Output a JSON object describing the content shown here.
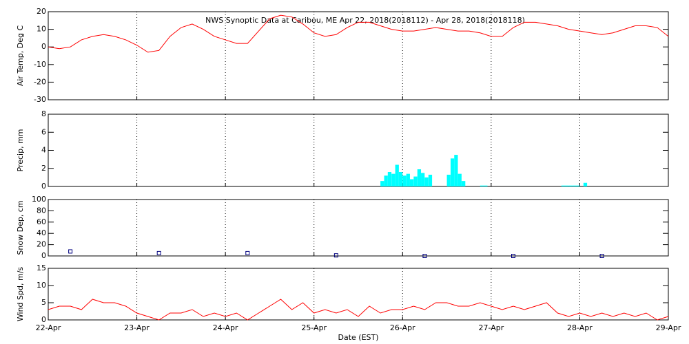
{
  "chart_data": [
    {
      "type": "line",
      "title": "NWS Synoptic Data at Caribou, ME   Apr 22, 2018(2018112) - Apr 28, 2018(2018118)",
      "ylabel": "Air Temp, Deg C",
      "color": "#ff0000",
      "x": [
        0,
        0.125,
        0.25,
        0.375,
        0.5,
        0.625,
        0.75,
        0.875,
        1,
        1.125,
        1.25,
        1.375,
        1.5,
        1.625,
        1.75,
        1.875,
        2,
        2.125,
        2.25,
        2.375,
        2.5,
        2.625,
        2.75,
        2.875,
        3,
        3.125,
        3.25,
        3.375,
        3.5,
        3.625,
        3.75,
        3.875,
        4,
        4.125,
        4.25,
        4.375,
        4.5,
        4.625,
        4.75,
        4.875,
        5,
        5.125,
        5.25,
        5.375,
        5.5,
        5.625,
        5.75,
        5.875,
        6,
        6.125,
        6.25,
        6.375,
        6.5,
        6.625,
        6.75,
        6.875,
        7
      ],
      "values": [
        0,
        -1,
        0,
        4,
        6,
        7,
        6,
        4,
        1,
        -3,
        -2,
        6,
        11,
        13,
        10,
        6,
        4,
        2,
        2,
        9,
        16,
        18,
        17,
        13,
        8,
        6,
        7,
        11,
        14,
        14,
        12,
        10,
        9,
        9,
        10,
        11,
        10,
        9,
        9,
        8,
        6,
        6,
        11,
        14,
        14,
        13,
        12,
        10,
        9,
        8,
        7,
        8,
        10,
        12,
        12,
        11,
        6
      ],
      "xlim": [
        0,
        7
      ],
      "xticks": [
        0,
        1,
        2,
        3,
        4,
        5,
        6,
        7
      ],
      "ylim": [
        -30,
        20
      ],
      "yticks": [
        -30,
        -20,
        -10,
        0,
        10,
        20
      ]
    },
    {
      "type": "bar",
      "ylabel": "Precip, mm",
      "color": "#00ffff",
      "x": [
        3.75,
        3.792,
        3.833,
        3.875,
        3.917,
        3.958,
        4,
        4.042,
        4.083,
        4.125,
        4.167,
        4.208,
        4.25,
        4.292,
        4.5,
        4.542,
        4.583,
        4.625,
        4.667,
        4.875,
        4.917,
        5.792,
        5.833,
        5.875,
        5.917,
        5.958,
        6.042
      ],
      "values": [
        0.6,
        1.2,
        1.6,
        1.4,
        2.4,
        1.6,
        1.2,
        1.4,
        0.8,
        1.1,
        1.9,
        1.5,
        1.0,
        1.3,
        1.3,
        3.1,
        3.5,
        1.4,
        0.6,
        0.1,
        0.1,
        0.1,
        0.1,
        0.1,
        0.1,
        0.1,
        0.4
      ],
      "xlim": [
        0,
        7
      ],
      "xticks": [
        0,
        1,
        2,
        3,
        4,
        5,
        6,
        7
      ],
      "ylim": [
        0,
        8
      ],
      "yticks": [
        0,
        2,
        4,
        6,
        8
      ]
    },
    {
      "type": "scatter",
      "ylabel": "Snow Dep, cm",
      "color": "#000080",
      "x": [
        0.25,
        1.25,
        2.25,
        3.25,
        4.25,
        5.25,
        6.25
      ],
      "values": [
        8,
        5,
        5,
        1,
        0,
        0,
        0
      ],
      "xlim": [
        0,
        7
      ],
      "xticks": [
        0,
        1,
        2,
        3,
        4,
        5,
        6,
        7
      ],
      "ylim": [
        0,
        100
      ],
      "yticks": [
        0,
        20,
        40,
        60,
        80,
        100
      ]
    },
    {
      "type": "line",
      "ylabel": "Wind Spd, m/s",
      "xlabel": "Date (EST)",
      "color": "#ff0000",
      "x": [
        0,
        0.125,
        0.25,
        0.375,
        0.5,
        0.625,
        0.75,
        0.875,
        1,
        1.125,
        1.25,
        1.375,
        1.5,
        1.625,
        1.75,
        1.875,
        2,
        2.125,
        2.25,
        2.375,
        2.5,
        2.625,
        2.75,
        2.875,
        3,
        3.125,
        3.25,
        3.375,
        3.5,
        3.625,
        3.75,
        3.875,
        4,
        4.125,
        4.25,
        4.375,
        4.5,
        4.625,
        4.75,
        4.875,
        5,
        5.125,
        5.25,
        5.375,
        5.5,
        5.625,
        5.75,
        5.875,
        6,
        6.125,
        6.25,
        6.375,
        6.5,
        6.625,
        6.75,
        6.875,
        7
      ],
      "values": [
        3,
        4,
        4,
        3,
        6,
        5,
        5,
        4,
        2,
        1,
        0,
        2,
        2,
        3,
        1,
        2,
        1,
        2,
        0,
        2,
        4,
        6,
        3,
        5,
        2,
        3,
        2,
        3,
        1,
        4,
        2,
        3,
        3,
        4,
        3,
        5,
        5,
        4,
        4,
        5,
        4,
        3,
        4,
        3,
        4,
        5,
        2,
        1,
        2,
        1,
        2,
        1,
        2,
        1,
        2,
        0,
        1
      ],
      "xlim": [
        0,
        7
      ],
      "xticks": [
        {
          "value": 0,
          "label": "22-Apr"
        },
        {
          "value": 1,
          "label": "23-Apr"
        },
        {
          "value": 2,
          "label": "24-Apr"
        },
        {
          "value": 3,
          "label": "25-Apr"
        },
        {
          "value": 4,
          "label": "26-Apr"
        },
        {
          "value": 5,
          "label": "27-Apr"
        },
        {
          "value": 6,
          "label": "28-Apr"
        },
        {
          "value": 7,
          "label": "29-Apr"
        }
      ],
      "ylim": [
        0,
        15
      ],
      "yticks": [
        0,
        5,
        10,
        15
      ]
    }
  ]
}
